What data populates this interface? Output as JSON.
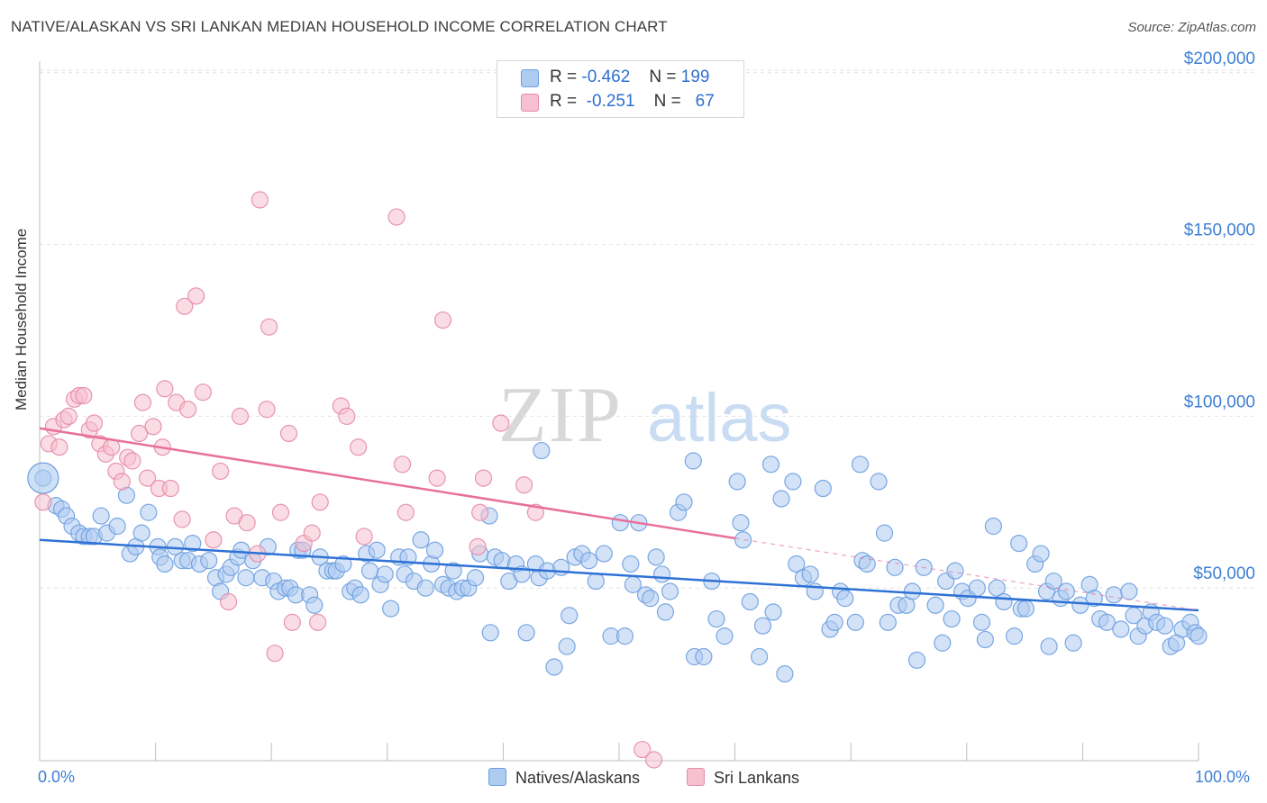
{
  "title": "NATIVE/ALASKAN VS SRI LANKAN MEDIAN HOUSEHOLD INCOME CORRELATION CHART",
  "source": "Source: ZipAtlas.com",
  "watermark": "ZIPatlas",
  "legend_top": {
    "rows": [
      {
        "r_label": "R =",
        "r_value": "-0.462",
        "n_label": "N =",
        "n_value": "199",
        "color": "#aecbf0",
        "border": "#6c9ee0"
      },
      {
        "r_label": "R =",
        "r_value": "-0.251",
        "n_label": "N =",
        "n_value": "67",
        "color": "#f6c0d0",
        "border": "#e68aa7"
      }
    ]
  },
  "legend_bottom": {
    "items": [
      {
        "label": "Natives/Alaskans",
        "color": "#aecbf0",
        "border": "#6c9ee0"
      },
      {
        "label": "Sri Lankans",
        "color": "#f6c0d0",
        "border": "#e68aa7"
      }
    ]
  },
  "chart_data": {
    "type": "scatter",
    "title": "NATIVE/ALASKAN VS SRI LANKAN MEDIAN HOUSEHOLD INCOME CORRELATION CHART",
    "xlabel": "",
    "ylabel": "Median Household Income",
    "x_tick_labels": {
      "left": "0.0%",
      "right": "100.0%"
    },
    "y_tick_labels": [
      "$50,000",
      "$100,000",
      "$150,000",
      "$200,000"
    ],
    "y_tick_values": [
      50000,
      100000,
      150000,
      200000
    ],
    "xlim": [
      0,
      100
    ],
    "ylim": [
      0,
      205000
    ],
    "grid": "horizontal dashed",
    "legend_position": "top-center",
    "colors": {
      "natives": "#6c9ee0",
      "natives_fill": "#aecbf0",
      "natives_line": "#2f72d6",
      "srilankans": "#e68aa7",
      "srilankans_fill": "#f6c0d0",
      "srilankans_line": "#e8709a",
      "tick_text": "#3d7fd6"
    },
    "series": [
      {
        "name": "Natives/Alaskans",
        "trend": {
          "x": [
            0,
            100
          ],
          "y": [
            64000,
            43500
          ]
        },
        "points": [
          [
            0.3,
            82000
          ],
          [
            1.4,
            74000
          ],
          [
            1.9,
            73000
          ],
          [
            2.3,
            71000
          ],
          [
            2.8,
            68000
          ],
          [
            3.4,
            66000
          ],
          [
            3.8,
            65000
          ],
          [
            4.3,
            65000
          ],
          [
            4.7,
            65000
          ],
          [
            5.3,
            71000
          ],
          [
            5.8,
            66000
          ],
          [
            6.7,
            68000
          ],
          [
            7.5,
            77000
          ],
          [
            7.8,
            60000
          ],
          [
            8.3,
            62000
          ],
          [
            8.8,
            66000
          ],
          [
            9.4,
            72000
          ],
          [
            10.2,
            62000
          ],
          [
            10.4,
            59000
          ],
          [
            10.8,
            57000
          ],
          [
            11.7,
            62000
          ],
          [
            12.3,
            58000
          ],
          [
            12.8,
            58000
          ],
          [
            13.2,
            63000
          ],
          [
            13.8,
            57000
          ],
          [
            14.6,
            58000
          ],
          [
            15.2,
            53000
          ],
          [
            15.6,
            49000
          ],
          [
            16.1,
            54000
          ],
          [
            16.5,
            56000
          ],
          [
            17.1,
            59000
          ],
          [
            17.4,
            61000
          ],
          [
            17.8,
            53000
          ],
          [
            18.4,
            58000
          ],
          [
            19.2,
            53000
          ],
          [
            19.7,
            62000
          ],
          [
            20.2,
            52000
          ],
          [
            20.6,
            49000
          ],
          [
            21.2,
            50000
          ],
          [
            21.6,
            50000
          ],
          [
            22.1,
            48000
          ],
          [
            22.3,
            61000
          ],
          [
            22.7,
            61000
          ],
          [
            23.3,
            48000
          ],
          [
            23.7,
            45000
          ],
          [
            24.2,
            59000
          ],
          [
            24.8,
            55000
          ],
          [
            25.3,
            55000
          ],
          [
            25.6,
            55000
          ],
          [
            26.2,
            57000
          ],
          [
            26.8,
            49000
          ],
          [
            27.2,
            50000
          ],
          [
            27.7,
            48000
          ],
          [
            28.2,
            60000
          ],
          [
            28.5,
            55000
          ],
          [
            29.1,
            61000
          ],
          [
            29.4,
            51000
          ],
          [
            29.8,
            54000
          ],
          [
            30.3,
            44000
          ],
          [
            31.0,
            59000
          ],
          [
            31.5,
            54000
          ],
          [
            31.8,
            59000
          ],
          [
            32.3,
            52000
          ],
          [
            32.9,
            64000
          ],
          [
            33.3,
            50000
          ],
          [
            33.8,
            57000
          ],
          [
            34.1,
            61000
          ],
          [
            34.8,
            51000
          ],
          [
            35.3,
            50000
          ],
          [
            35.7,
            55000
          ],
          [
            36.0,
            49000
          ],
          [
            36.5,
            50000
          ],
          [
            37.0,
            50000
          ],
          [
            37.6,
            53000
          ],
          [
            38.0,
            60000
          ],
          [
            38.8,
            71000
          ],
          [
            38.9,
            37000
          ],
          [
            39.3,
            59000
          ],
          [
            39.9,
            58000
          ],
          [
            40.5,
            52000
          ],
          [
            41.1,
            57000
          ],
          [
            41.6,
            54000
          ],
          [
            42.0,
            37000
          ],
          [
            42.8,
            57000
          ],
          [
            43.1,
            53000
          ],
          [
            43.3,
            90000
          ],
          [
            43.8,
            55000
          ],
          [
            44.4,
            27000
          ],
          [
            45.0,
            56000
          ],
          [
            45.5,
            33000
          ],
          [
            45.7,
            42000
          ],
          [
            46.2,
            59000
          ],
          [
            46.8,
            60000
          ],
          [
            47.4,
            58000
          ],
          [
            48.0,
            52000
          ],
          [
            48.7,
            60000
          ],
          [
            49.3,
            36000
          ],
          [
            50.1,
            69000
          ],
          [
            50.5,
            36000
          ],
          [
            51.0,
            57000
          ],
          [
            51.2,
            51000
          ],
          [
            51.7,
            69000
          ],
          [
            52.3,
            48000
          ],
          [
            52.7,
            47000
          ],
          [
            53.2,
            59000
          ],
          [
            53.7,
            54000
          ],
          [
            54.0,
            43000
          ],
          [
            54.4,
            49000
          ],
          [
            55.1,
            72000
          ],
          [
            55.6,
            75000
          ],
          [
            56.4,
            87000
          ],
          [
            56.5,
            30000
          ],
          [
            57.3,
            30000
          ],
          [
            58.0,
            52000
          ],
          [
            58.4,
            41000
          ],
          [
            59.1,
            36000
          ],
          [
            60.2,
            81000
          ],
          [
            60.5,
            69000
          ],
          [
            60.7,
            64000
          ],
          [
            61.3,
            46000
          ],
          [
            62.1,
            30000
          ],
          [
            62.4,
            39000
          ],
          [
            63.1,
            86000
          ],
          [
            63.3,
            43000
          ],
          [
            64.0,
            76000
          ],
          [
            64.3,
            25000
          ],
          [
            65.0,
            81000
          ],
          [
            65.3,
            57000
          ],
          [
            65.9,
            53000
          ],
          [
            66.5,
            54000
          ],
          [
            66.9,
            49000
          ],
          [
            67.6,
            79000
          ],
          [
            68.2,
            38000
          ],
          [
            68.6,
            40000
          ],
          [
            69.1,
            49000
          ],
          [
            69.5,
            47000
          ],
          [
            70.4,
            40000
          ],
          [
            70.8,
            86000
          ],
          [
            71.0,
            58000
          ],
          [
            71.4,
            57000
          ],
          [
            72.4,
            81000
          ],
          [
            72.9,
            66000
          ],
          [
            73.2,
            40000
          ],
          [
            73.8,
            56000
          ],
          [
            74.1,
            45000
          ],
          [
            74.8,
            45000
          ],
          [
            75.3,
            49000
          ],
          [
            75.7,
            29000
          ],
          [
            76.3,
            56000
          ],
          [
            77.3,
            45000
          ],
          [
            77.9,
            34000
          ],
          [
            78.2,
            52000
          ],
          [
            78.7,
            41000
          ],
          [
            79.0,
            55000
          ],
          [
            79.6,
            49000
          ],
          [
            80.1,
            47000
          ],
          [
            80.9,
            50000
          ],
          [
            81.3,
            40000
          ],
          [
            81.6,
            35000
          ],
          [
            82.3,
            68000
          ],
          [
            82.6,
            50000
          ],
          [
            83.2,
            46000
          ],
          [
            84.1,
            36000
          ],
          [
            84.5,
            63000
          ],
          [
            84.7,
            44000
          ],
          [
            85.1,
            44000
          ],
          [
            85.9,
            57000
          ],
          [
            86.4,
            60000
          ],
          [
            86.9,
            49000
          ],
          [
            87.1,
            33000
          ],
          [
            87.5,
            52000
          ],
          [
            88.1,
            47000
          ],
          [
            88.6,
            49000
          ],
          [
            89.2,
            34000
          ],
          [
            89.8,
            45000
          ],
          [
            90.6,
            51000
          ],
          [
            91.0,
            47000
          ],
          [
            91.5,
            41000
          ],
          [
            92.1,
            40000
          ],
          [
            92.7,
            48000
          ],
          [
            93.3,
            38000
          ],
          [
            94.0,
            49000
          ],
          [
            94.4,
            42000
          ],
          [
            94.8,
            36000
          ],
          [
            95.4,
            39000
          ],
          [
            95.9,
            43000
          ],
          [
            96.4,
            40000
          ],
          [
            97.1,
            39000
          ],
          [
            97.6,
            33000
          ],
          [
            98.1,
            34000
          ],
          [
            98.6,
            38000
          ],
          [
            99.3,
            40000
          ],
          [
            99.7,
            37000
          ],
          [
            100.0,
            36000
          ]
        ]
      },
      {
        "name": "Sri Lankans",
        "trend": {
          "x": [
            0,
            60
          ],
          "y": [
            96500,
            64500
          ]
        },
        "trend_dashed": {
          "x": [
            60,
            100
          ],
          "y": [
            64500,
            43500
          ]
        },
        "points": [
          [
            0.3,
            75000
          ],
          [
            0.8,
            92000
          ],
          [
            1.2,
            97000
          ],
          [
            1.7,
            91000
          ],
          [
            2.1,
            99000
          ],
          [
            2.5,
            100000
          ],
          [
            3.0,
            105000
          ],
          [
            3.4,
            106000
          ],
          [
            3.8,
            106000
          ],
          [
            4.3,
            96000
          ],
          [
            4.7,
            98000
          ],
          [
            5.2,
            92000
          ],
          [
            5.7,
            89000
          ],
          [
            6.2,
            91000
          ],
          [
            6.6,
            84000
          ],
          [
            7.1,
            81000
          ],
          [
            7.6,
            88000
          ],
          [
            8.0,
            87000
          ],
          [
            8.6,
            95000
          ],
          [
            8.9,
            104000
          ],
          [
            9.3,
            82000
          ],
          [
            9.8,
            97000
          ],
          [
            10.3,
            79000
          ],
          [
            10.6,
            91000
          ],
          [
            10.8,
            108000
          ],
          [
            11.3,
            79000
          ],
          [
            11.8,
            104000
          ],
          [
            12.3,
            70000
          ],
          [
            12.8,
            102000
          ],
          [
            12.5,
            132000
          ],
          [
            13.5,
            135000
          ],
          [
            14.1,
            107000
          ],
          [
            15.0,
            64000
          ],
          [
            15.6,
            84000
          ],
          [
            16.3,
            46000
          ],
          [
            16.8,
            71000
          ],
          [
            17.3,
            100000
          ],
          [
            17.9,
            69000
          ],
          [
            18.8,
            60000
          ],
          [
            19.0,
            163000
          ],
          [
            19.6,
            102000
          ],
          [
            19.8,
            126000
          ],
          [
            20.3,
            31000
          ],
          [
            20.8,
            72000
          ],
          [
            21.5,
            95000
          ],
          [
            21.8,
            40000
          ],
          [
            22.8,
            63000
          ],
          [
            23.5,
            66000
          ],
          [
            24.0,
            40000
          ],
          [
            24.2,
            75000
          ],
          [
            26.0,
            103000
          ],
          [
            26.5,
            100000
          ],
          [
            27.5,
            91000
          ],
          [
            28.0,
            65000
          ],
          [
            30.8,
            158000
          ],
          [
            31.3,
            86000
          ],
          [
            31.6,
            72000
          ],
          [
            34.8,
            128000
          ],
          [
            34.3,
            82000
          ],
          [
            37.8,
            62000
          ],
          [
            38.0,
            72000
          ],
          [
            38.3,
            82000
          ],
          [
            39.8,
            98000
          ],
          [
            41.8,
            80000
          ],
          [
            42.8,
            72000
          ],
          [
            52.0,
            3000
          ],
          [
            53.0,
            0
          ]
        ]
      }
    ]
  }
}
